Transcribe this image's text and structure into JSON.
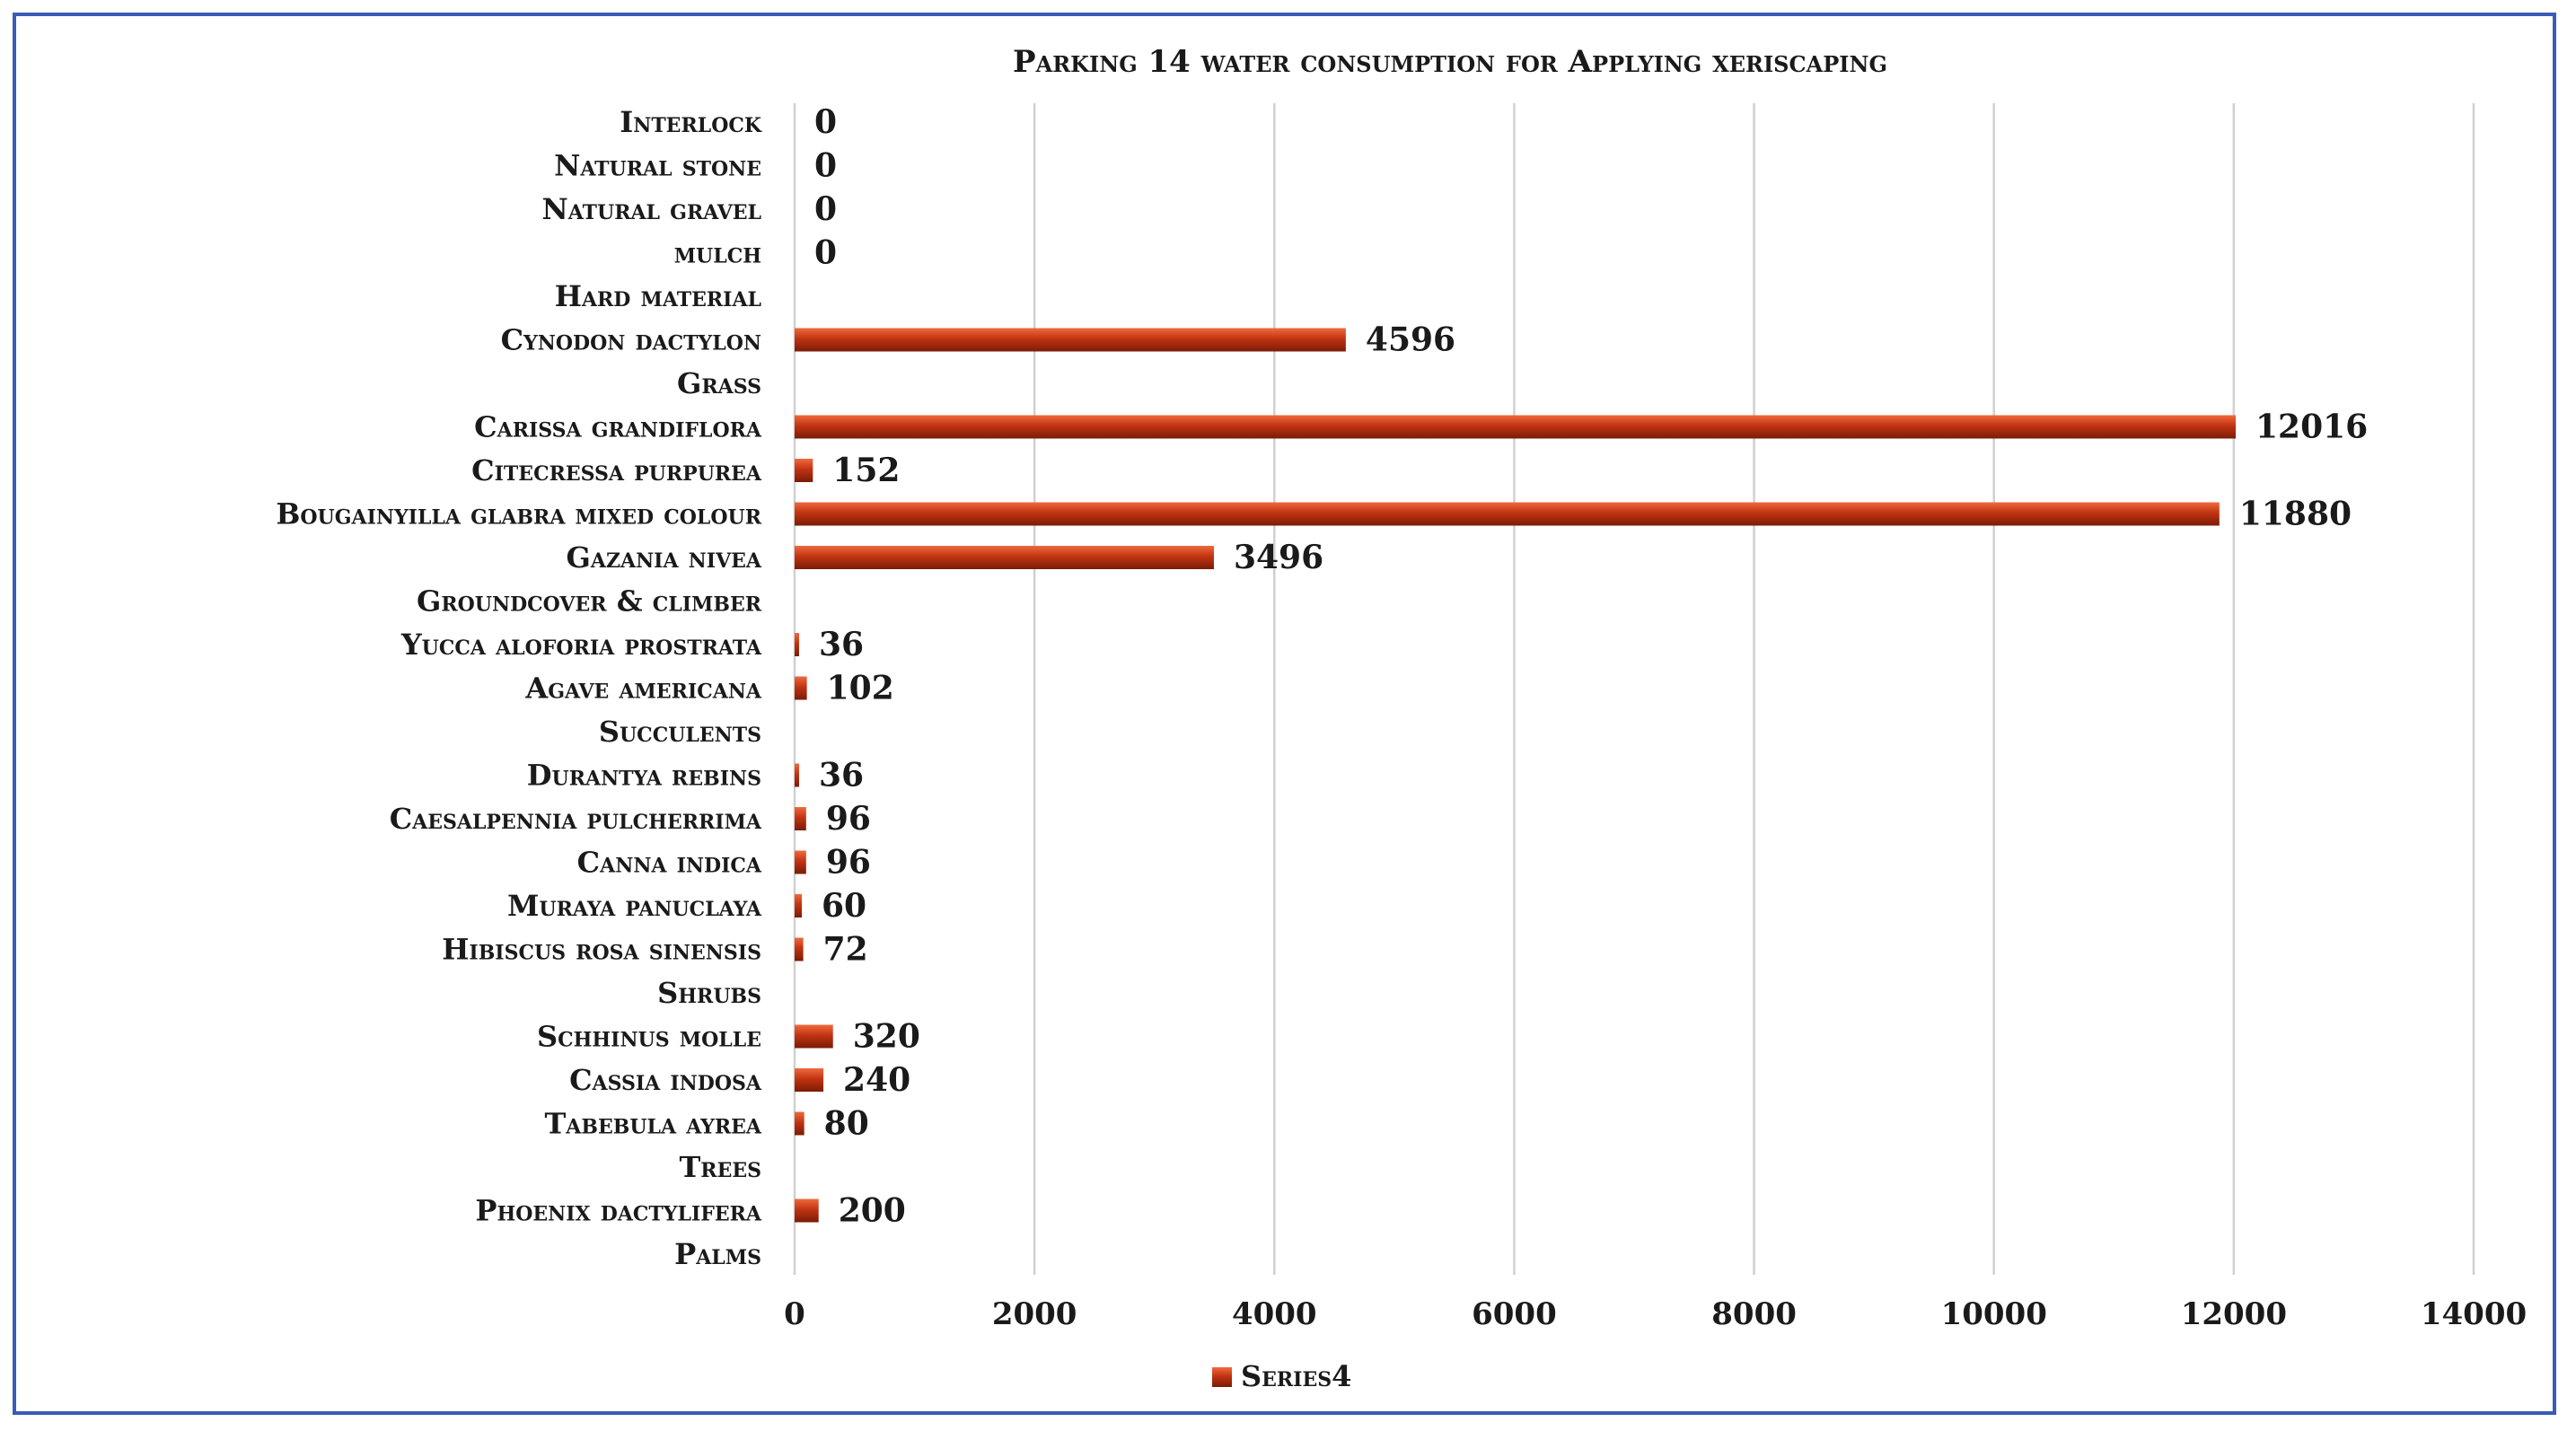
{
  "chart_data": {
    "type": "bar",
    "orientation": "horizontal",
    "title": "Parking 14 water consumption for Applying xeriscaping",
    "categories": [
      "Palms",
      "Phoenix dactylifera",
      "Trees",
      "Tabebula ayrea",
      "Cassia indosa",
      "Schhinus molle",
      "Shrubs",
      "Hibiscus rosa sinensis",
      "Muraya panuclaya",
      "Canna indica",
      "Caesalpennia pulcherrima",
      "Durantya rebins",
      "Succulents",
      "Agave americana",
      "Yucca aloforia prostrata",
      "Groundcover & climber",
      "Gazania nivea",
      "Bougainyilla glabra mixed colour",
      "Citecressa purpurea",
      "Carissa grandiflora",
      "Grass",
      "Cynodon dactylon",
      "Hard material",
      "mulch",
      "Natural gravel",
      "Natural stone",
      "Interlock"
    ],
    "series": [
      {
        "name": "Series4",
        "values": [
          null,
          200,
          null,
          80,
          240,
          320,
          null,
          72,
          60,
          96,
          96,
          36,
          null,
          102,
          36,
          null,
          3496,
          11880,
          152,
          12016,
          null,
          4596,
          null,
          0,
          0,
          0,
          0
        ],
        "labels": [
          "",
          "200",
          "",
          "80",
          "240",
          "320",
          "",
          "72",
          "60",
          "96",
          "96",
          "36",
          "",
          "102",
          "36",
          "",
          "3496",
          "11880",
          "152",
          "12016",
          "",
          "4596",
          "",
          "0",
          "0",
          "0",
          "0"
        ]
      }
    ],
    "xlim": [
      0,
      14000
    ],
    "xticks": [
      "0",
      "2000",
      "4000",
      "6000",
      "8000",
      "10000",
      "12000",
      "14000"
    ],
    "grid": "vertical",
    "legend": "bottom",
    "colors": {
      "bar": "#c23412",
      "bar_highlight": "#e8542a",
      "grid": "#d0d0d0",
      "frame": "#3a5bb8"
    }
  }
}
